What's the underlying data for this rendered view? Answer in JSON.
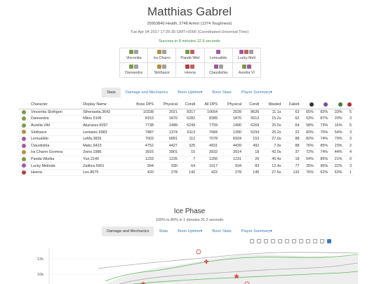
{
  "header": {
    "title": "Matthias Gabrel",
    "health_line": "25953840 Health, 2748 Armor (1374 Toughness)",
    "date_line": "Tue Apr 04 2017 17:25:35 GMT+0000 (Coordinated Universal Time)",
    "success_line": "Success in 8 minutes 12.9 seconds"
  },
  "players": [
    {
      "name": "Vincentia",
      "colors": [
        "#7a9a4a",
        "#a0a0a0"
      ]
    },
    {
      "name": "Ira Charro",
      "colors": [
        "#b8903a",
        "#a0a0a0"
      ]
    },
    {
      "name": "Panda Wiel",
      "colors": [
        "#7a9a4a",
        "#c06060"
      ]
    },
    {
      "name": "Lemualldo",
      "colors": [
        "#a05aa0"
      ]
    },
    {
      "name": "Lucky Meli",
      "colors": [
        "#a05aa0",
        "#c06060",
        "#a0a0a0"
      ]
    },
    {
      "name": "Dareandra",
      "colors": [
        "#7a9a4a",
        "#a0a0a0"
      ]
    },
    {
      "name": "Slothazor",
      "colors": [
        "#b8903a",
        "#a0a0a0"
      ]
    },
    {
      "name": "Heena",
      "colors": [
        "#b04040",
        "#c06060"
      ]
    },
    {
      "name": "Claustishia",
      "colors": [
        "#a05aa0",
        "#a0a0a0"
      ]
    },
    {
      "name": "Aurelia VI",
      "colors": [
        "#7a9a4a",
        "#a05aa0"
      ]
    }
  ],
  "tabs1": [
    {
      "label": "Stats",
      "active": true
    },
    {
      "label": "Damage and Mechanics",
      "active": false
    },
    {
      "label": "Boon Uptime▾",
      "active": false
    },
    {
      "label": "Boon Stats",
      "active": false
    },
    {
      "label": "Player Summary▾",
      "active": false
    }
  ],
  "stats_table": {
    "columns": [
      "Character",
      "Display Name",
      "Boss DPS",
      "Physical",
      "Condi",
      "All DPS",
      "Physical",
      "Condi",
      "Wasted",
      "Failed"
    ],
    "icon_columns": [
      {
        "name": "dodge-icon",
        "color": "#333333"
      },
      {
        "name": "boon-icon",
        "color": "#7a4aa0"
      },
      {
        "name": "buff-icon",
        "color": "#4a7a3a"
      },
      {
        "name": "down-icon",
        "color": "#b03030"
      }
    ],
    "rows": [
      {
        "icon_color": "#7a9a4a",
        "cells": [
          "Vincentia Slothgon",
          "Sthenastia.3642",
          "10338",
          "2021",
          "8317",
          "10654",
          "2028",
          "8626",
          "11.1s",
          "63",
          "65%",
          "82%",
          "33%",
          "5"
        ]
      },
      {
        "icon_color": "#7a9a4a",
        "cells": [
          "Dareandra",
          "Milou.5106",
          "8153",
          "1870",
          "6282",
          "8389",
          "1876",
          "6513",
          "15.2s",
          "62",
          "63%",
          "87%",
          "20%",
          "3"
        ]
      },
      {
        "icon_color": "#7a9a4a",
        "cells": [
          "Aurelia Vild",
          "Akyrasss.6097",
          "7738",
          "1489",
          "6249",
          "7759",
          "1490",
          "6269",
          "25.5s",
          "64",
          "58%",
          "73%",
          "16%",
          "5"
        ]
      },
      {
        "icon_color": "#b8903a",
        "cells": [
          "Slothazor",
          "Leniwiec.6983",
          "7487",
          "1374",
          "6113",
          "7684",
          "1390",
          "6294",
          "25.2s",
          "22",
          "60%",
          "70%",
          "54%",
          "3"
        ]
      },
      {
        "icon_color": "#a05aa0",
        "cells": [
          "Lemualldo",
          "LeMy.3826",
          "7003",
          "6891",
          "112",
          "7078",
          "6924",
          "153",
          "27.0s",
          "88",
          "82%",
          "74%",
          "79%",
          "3"
        ]
      },
      {
        "icon_color": "#a05aa0",
        "cells": [
          "Claustishia",
          "Makc.6423",
          "4752",
          "4427",
          "325",
          "4931",
          "4439",
          "492",
          "7.3s",
          "88",
          "76%",
          "85%",
          "23%",
          "2"
        ]
      },
      {
        "icon_color": "#b8903a",
        "cells": [
          "Ira Charro Gromna",
          "Zwirz.1986",
          "3916",
          "3901",
          "15",
          "3932",
          "3914",
          "18",
          "42.0s",
          "37",
          "72%",
          "74%",
          "44%",
          "4"
        ]
      },
      {
        "icon_color": "#7a9a4a",
        "cells": [
          "Panda Wielka",
          "Yuri.2140",
          "1233",
          "1226",
          "7",
          "1256",
          "1231",
          "26",
          "45.4s",
          "18",
          "54%",
          "85%",
          "21%",
          "0"
        ]
      },
      {
        "icon_color": "#a05aa0",
        "cells": [
          "Lucky Melinda",
          "Zaithra.5901",
          "994",
          "930",
          "64",
          "1017",
          "934",
          "83",
          "12.4s",
          "77",
          "25%",
          "95%",
          "22%",
          "3"
        ]
      },
      {
        "icon_color": "#b04040",
        "cells": [
          "Heena",
          "Lex.8675",
          "420",
          "278",
          "142",
          "422",
          "278",
          "145",
          "27.6s",
          "132",
          "76%",
          "62%",
          "63%",
          "1"
        ]
      }
    ]
  },
  "phase": {
    "title": "Ice Phase",
    "subtitle": "100% to 80% in 1 minutes 31.2 seconds"
  },
  "tabs2": [
    {
      "label": "Damage and Mechanics",
      "active": true
    },
    {
      "label": "Stats",
      "active": false
    },
    {
      "label": "Boon Uptime▾",
      "active": false
    },
    {
      "label": "Boon Stats",
      "active": false
    },
    {
      "label": "Player Summary▾",
      "active": false
    }
  ],
  "chart_data": {
    "type": "line",
    "y_ticks": [
      "12k",
      "10k"
    ],
    "series_colors": [
      "#5cb85c",
      "#aaaaaa",
      "#d9534f"
    ],
    "markers": [
      "circle",
      "cross",
      "star"
    ]
  }
}
